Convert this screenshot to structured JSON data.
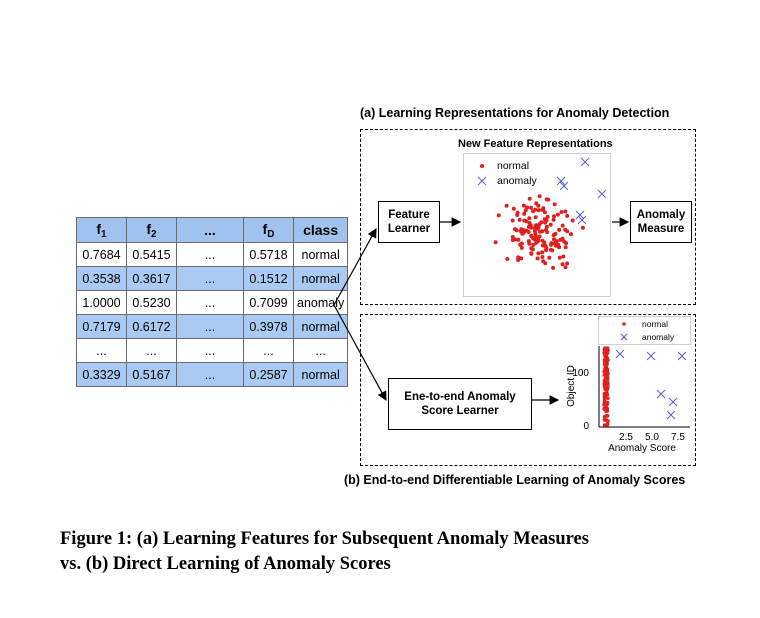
{
  "table": {
    "headers": [
      "f1",
      "f2",
      "...",
      "fD",
      "class"
    ],
    "header_main": [
      "f",
      "f",
      "...",
      "f",
      "class"
    ],
    "header_sub": [
      "1",
      "2",
      "",
      "D",
      ""
    ],
    "rows": [
      [
        "0.7684",
        "0.5415",
        "...",
        "0.5718",
        "normal"
      ],
      [
        "0.3538",
        "0.3617",
        "...",
        "0.1512",
        "normal"
      ],
      [
        "1.0000",
        "0.5230",
        "...",
        "0.7099",
        "anomaly"
      ],
      [
        "0.7179",
        "0.6172",
        "...",
        "0.3978",
        "normal"
      ],
      [
        "...",
        "...",
        "...",
        "...",
        "..."
      ],
      [
        "0.3329",
        "0.5167",
        "...",
        "0.2587",
        "normal"
      ]
    ]
  },
  "panel_a": {
    "title": "(a) Learning Representations for Anomaly Detection",
    "feature_learner": "Feature Learner",
    "feature_learner_lines": [
      "Feature",
      "Learner"
    ],
    "anomaly_measure_lines": [
      "Anomaly",
      "Measure"
    ],
    "plot_title": "New Feature Representations",
    "legend_normal": "normal",
    "legend_anomaly": "anomaly"
  },
  "panel_b": {
    "title": "(b) End-to-end Differentiable Learning of Anomaly Scores",
    "learner_lines": [
      "Ene-to-end Anomaly",
      "Score Learner"
    ],
    "plot": {
      "legend_normal": "normal",
      "legend_anomaly": "anomaly",
      "ylabel": "Object ID",
      "xlabel": "Anomaly Score",
      "yticks": [
        "0",
        "100"
      ],
      "xticks": [
        "2.5",
        "5.0",
        "7.5"
      ]
    }
  },
  "caption": {
    "line1": "Figure 1: (a) Learning Features for Subsequent Anomaly Measures",
    "line2": "vs. (b) Direct Learning of Anomaly Scores"
  },
  "colors": {
    "normal": "#e02020",
    "anomaly": "#5b5bd6",
    "row_blue": "#a9caf2",
    "header_blue": "#9fc3ee"
  }
}
